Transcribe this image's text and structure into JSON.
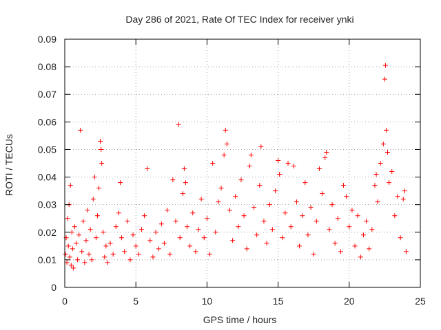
{
  "chart_data": {
    "type": "scatter",
    "title": "Day 286 of 2021, Rate Of TEC Index for receiver ynki",
    "xlabel": "GPS time / hours",
    "ylabel": "ROTI / TECUs",
    "xlim": [
      0,
      25
    ],
    "ylim": [
      0,
      0.09
    ],
    "xticks": [
      0,
      5,
      10,
      15,
      20,
      25
    ],
    "xtick_labels": [
      "0",
      "5",
      "10",
      "15",
      "20",
      "25"
    ],
    "yticks": [
      0,
      0.01,
      0.02,
      0.03,
      0.04,
      0.05,
      0.06,
      0.07,
      0.08,
      0.09
    ],
    "ytick_labels": [
      "0",
      "0.01",
      "0.02",
      "0.03",
      "0.04",
      "0.05",
      "0.06",
      "0.07",
      "0.08",
      "0.09"
    ],
    "grid": true,
    "marker": "+",
    "series_color": "#ff0000",
    "series": [
      {
        "name": "ROTI",
        "points": [
          [
            0.05,
            0.012
          ],
          [
            0.1,
            0.018
          ],
          [
            0.15,
            0.009
          ],
          [
            0.2,
            0.025
          ],
          [
            0.25,
            0.015
          ],
          [
            0.3,
            0.03
          ],
          [
            0.35,
            0.011
          ],
          [
            0.4,
            0.037
          ],
          [
            0.45,
            0.008
          ],
          [
            0.5,
            0.02
          ],
          [
            0.55,
            0.014
          ],
          [
            0.6,
            0.007
          ],
          [
            0.7,
            0.022
          ],
          [
            0.8,
            0.016
          ],
          [
            0.9,
            0.01
          ],
          [
            1.0,
            0.019
          ],
          [
            1.1,
            0.057
          ],
          [
            1.2,
            0.013
          ],
          [
            1.3,
            0.024
          ],
          [
            1.4,
            0.009
          ],
          [
            1.5,
            0.017
          ],
          [
            1.6,
            0.028
          ],
          [
            1.7,
            0.012
          ],
          [
            1.8,
            0.021
          ],
          [
            1.9,
            0.01
          ],
          [
            2.0,
            0.032
          ],
          [
            2.1,
            0.04
          ],
          [
            2.2,
            0.018
          ],
          [
            2.3,
            0.026
          ],
          [
            2.4,
            0.036
          ],
          [
            2.5,
            0.053
          ],
          [
            2.55,
            0.05
          ],
          [
            2.6,
            0.045
          ],
          [
            2.7,
            0.02
          ],
          [
            2.8,
            0.011
          ],
          [
            2.9,
            0.015
          ],
          [
            3.0,
            0.009
          ],
          [
            3.2,
            0.016
          ],
          [
            3.4,
            0.012
          ],
          [
            3.6,
            0.022
          ],
          [
            3.8,
            0.027
          ],
          [
            3.9,
            0.038
          ],
          [
            4.0,
            0.018
          ],
          [
            4.2,
            0.013
          ],
          [
            4.4,
            0.024
          ],
          [
            4.6,
            0.01
          ],
          [
            4.8,
            0.019
          ],
          [
            5.0,
            0.015
          ],
          [
            5.2,
            0.012
          ],
          [
            5.4,
            0.021
          ],
          [
            5.6,
            0.026
          ],
          [
            5.8,
            0.043
          ],
          [
            6.0,
            0.017
          ],
          [
            6.2,
            0.011
          ],
          [
            6.4,
            0.02
          ],
          [
            6.6,
            0.014
          ],
          [
            6.8,
            0.023
          ],
          [
            7.0,
            0.016
          ],
          [
            7.2,
            0.028
          ],
          [
            7.4,
            0.012
          ],
          [
            7.6,
            0.039
          ],
          [
            7.8,
            0.024
          ],
          [
            8.0,
            0.059
          ],
          [
            8.1,
            0.018
          ],
          [
            8.3,
            0.034
          ],
          [
            8.4,
            0.043
          ],
          [
            8.5,
            0.038
          ],
          [
            8.6,
            0.022
          ],
          [
            8.8,
            0.015
          ],
          [
            9.0,
            0.027
          ],
          [
            9.2,
            0.013
          ],
          [
            9.4,
            0.021
          ],
          [
            9.6,
            0.032
          ],
          [
            9.8,
            0.018
          ],
          [
            10.0,
            0.025
          ],
          [
            10.2,
            0.012
          ],
          [
            10.4,
            0.045
          ],
          [
            10.6,
            0.02
          ],
          [
            10.8,
            0.031
          ],
          [
            11.0,
            0.036
          ],
          [
            11.2,
            0.048
          ],
          [
            11.3,
            0.057
          ],
          [
            11.4,
            0.052
          ],
          [
            11.6,
            0.028
          ],
          [
            11.8,
            0.017
          ],
          [
            12.0,
            0.033
          ],
          [
            12.2,
            0.022
          ],
          [
            12.4,
            0.039
          ],
          [
            12.6,
            0.026
          ],
          [
            12.8,
            0.014
          ],
          [
            13.0,
            0.044
          ],
          [
            13.1,
            0.048
          ],
          [
            13.3,
            0.029
          ],
          [
            13.5,
            0.019
          ],
          [
            13.7,
            0.037
          ],
          [
            13.8,
            0.051
          ],
          [
            14.0,
            0.024
          ],
          [
            14.2,
            0.016
          ],
          [
            14.4,
            0.03
          ],
          [
            14.6,
            0.021
          ],
          [
            14.8,
            0.035
          ],
          [
            15.0,
            0.046
          ],
          [
            15.1,
            0.041
          ],
          [
            15.3,
            0.018
          ],
          [
            15.5,
            0.027
          ],
          [
            15.7,
            0.045
          ],
          [
            15.9,
            0.022
          ],
          [
            16.1,
            0.044
          ],
          [
            16.3,
            0.031
          ],
          [
            16.5,
            0.015
          ],
          [
            16.7,
            0.026
          ],
          [
            16.9,
            0.038
          ],
          [
            17.1,
            0.019
          ],
          [
            17.3,
            0.029
          ],
          [
            17.5,
            0.012
          ],
          [
            17.7,
            0.024
          ],
          [
            17.9,
            0.043
          ],
          [
            18.1,
            0.034
          ],
          [
            18.3,
            0.047
          ],
          [
            18.4,
            0.049
          ],
          [
            18.6,
            0.021
          ],
          [
            18.8,
            0.03
          ],
          [
            19.0,
            0.016
          ],
          [
            19.2,
            0.025
          ],
          [
            19.4,
            0.013
          ],
          [
            19.6,
            0.037
          ],
          [
            19.8,
            0.033
          ],
          [
            20.0,
            0.022
          ],
          [
            20.2,
            0.028
          ],
          [
            20.4,
            0.015
          ],
          [
            20.6,
            0.026
          ],
          [
            20.8,
            0.011
          ],
          [
            21.0,
            0.019
          ],
          [
            21.2,
            0.024
          ],
          [
            21.4,
            0.014
          ],
          [
            21.6,
            0.021
          ],
          [
            21.8,
            0.037
          ],
          [
            21.9,
            0.041
          ],
          [
            22.0,
            0.031
          ],
          [
            22.2,
            0.045
          ],
          [
            22.4,
            0.052
          ],
          [
            22.5,
            0.0755
          ],
          [
            22.55,
            0.0805
          ],
          [
            22.6,
            0.057
          ],
          [
            22.7,
            0.049
          ],
          [
            22.8,
            0.038
          ],
          [
            23.0,
            0.042
          ],
          [
            23.2,
            0.026
          ],
          [
            23.4,
            0.033
          ],
          [
            23.6,
            0.018
          ],
          [
            23.8,
            0.032
          ],
          [
            23.9,
            0.035
          ],
          [
            24.0,
            0.013
          ]
        ]
      }
    ]
  }
}
